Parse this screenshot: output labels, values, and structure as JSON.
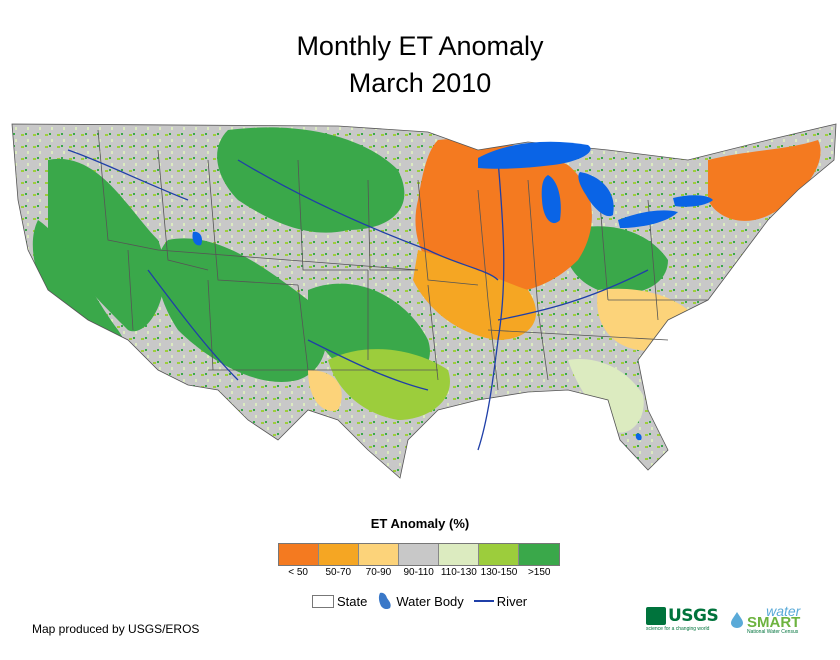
{
  "title": {
    "line1": "Monthly ET Anomaly",
    "line2": "March 2010"
  },
  "legend": {
    "title": "ET Anomaly (%)",
    "classes": [
      {
        "label": "< 50",
        "color": "#f47a20"
      },
      {
        "label": "50-70",
        "color": "#f5a623"
      },
      {
        "label": "70-90",
        "color": "#fcd37a"
      },
      {
        "label": "90-110",
        "color": "#c8c8c8"
      },
      {
        "label": "110-130",
        "color": "#dcebc0"
      },
      {
        "label": "130-150",
        "color": "#9ccd3c"
      },
      {
        "label": ">150",
        "color": "#3aa84a"
      }
    ],
    "symbols": {
      "state": "State",
      "water_body": "Water Body",
      "river": "River"
    }
  },
  "colors": {
    "water": "#0a64e6",
    "river": "#1f3fa8",
    "state_line": "#555555"
  },
  "credit": "Map produced by USGS/EROS",
  "logos": {
    "usgs": "USGS",
    "usgs_tagline": "science for a changing world",
    "watersmart_top": "water",
    "watersmart_main": "SMART",
    "watersmart_tagline": "National Water Census"
  }
}
